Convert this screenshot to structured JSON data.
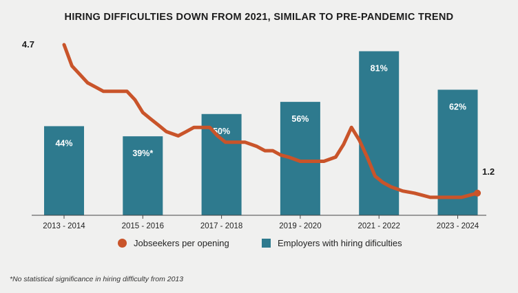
{
  "chart_data": {
    "title": "HIRING DIFFICULTIES DOWN FROM 2021, SIMILAR TO PRE-PANDEMIC TREND",
    "type": "bar+line",
    "categories": [
      "2013 - 2014",
      "2015 - 2016",
      "2017 - 2018",
      "2019 - 2020",
      "2021 - 2022",
      "2023 - 2024"
    ],
    "bar_series": {
      "name": "Employers with hiring dificulties",
      "values": [
        44,
        39,
        50,
        56,
        81,
        62
      ],
      "labels": [
        "44%",
        "39%*",
        "50%",
        "56%",
        "81%",
        "62%"
      ],
      "color": "#2e7a8e",
      "ylim": [
        0,
        90
      ]
    },
    "line_series": {
      "name": "Jobseekers per opening",
      "color": "#c9542a",
      "ylim": [
        0.9,
        5.2
      ],
      "start_label": "4.7",
      "end_label": "1.2",
      "x": [
        0,
        0.1,
        0.2,
        0.3,
        0.4,
        0.5,
        0.6,
        0.7,
        0.8,
        0.9,
        1.0,
        1.1,
        1.2,
        1.3,
        1.45,
        1.55,
        1.65,
        1.75,
        1.85,
        1.95,
        2.05,
        2.15,
        2.3,
        2.45,
        2.55,
        2.65,
        2.75,
        2.85,
        3.0,
        3.15,
        3.3,
        3.45,
        3.55,
        3.65,
        3.75,
        3.85,
        3.95,
        4.05,
        4.15,
        4.3,
        4.45,
        4.55,
        4.65,
        4.75,
        4.85,
        4.95,
        5.05,
        5.15,
        5.25
      ],
      "y": [
        4.7,
        4.2,
        4.0,
        3.8,
        3.7,
        3.6,
        3.6,
        3.6,
        3.6,
        3.4,
        3.1,
        2.95,
        2.8,
        2.65,
        2.55,
        2.65,
        2.75,
        2.75,
        2.75,
        2.55,
        2.4,
        2.4,
        2.4,
        2.3,
        2.2,
        2.2,
        2.1,
        2.05,
        1.95,
        1.95,
        1.95,
        2.05,
        2.35,
        2.75,
        2.45,
        2.05,
        1.6,
        1.45,
        1.35,
        1.25,
        1.2,
        1.15,
        1.1,
        1.1,
        1.1,
        1.1,
        1.1,
        1.15,
        1.2
      ]
    },
    "legend_position": "bottom",
    "footnote": "*No statistical significance in hiring difficulty from 2013"
  }
}
